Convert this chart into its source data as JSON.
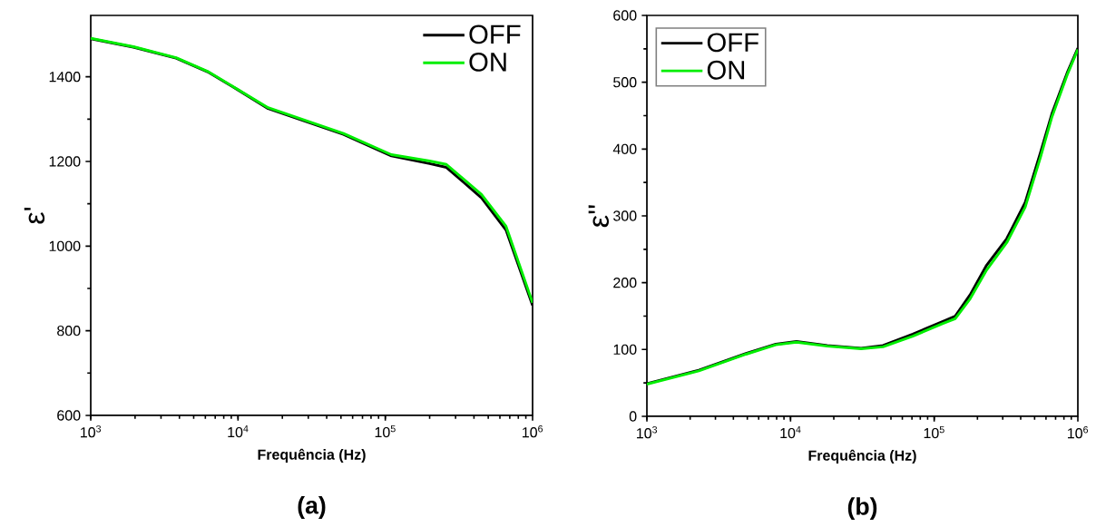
{
  "chart_data": [
    {
      "type": "line",
      "xlabel": "**Frequência (Hz)**",
      "ylabel": "ε'",
      "log": "x",
      "legend": "top right",
      "xlim": [
        1000,
        1000000
      ],
      "ylim": [
        600,
        1545
      ],
      "xticks": [
        {
          "value": 1000,
          "label": "10$^{3}$"
        },
        {
          "value": 10000,
          "label": "10$^{4}$"
        },
        {
          "value": 100000,
          "label": "10$^{5}$"
        },
        {
          "value": 1000000,
          "label": "10$^{6}$"
        }
      ],
      "yticks": [
        600,
        800,
        1000,
        1200,
        1400
      ],
      "x": [
        1000,
        1950,
        3800,
        6200,
        10000,
        16000,
        26000,
        52000,
        110000,
        200000,
        260000,
        450000,
        660000,
        1000000
      ],
      "series": [
        {
          "name": "OFF",
          "color": "#000000",
          "values": [
            1490,
            1470,
            1444,
            1412,
            1369,
            1325,
            1300,
            1264,
            1213,
            1195,
            1186,
            1114,
            1038,
            860
          ]
        },
        {
          "name": "ON",
          "color": "#00ee00",
          "values": [
            1491,
            1471,
            1445,
            1413,
            1370,
            1327,
            1302,
            1266,
            1216,
            1201,
            1193,
            1122,
            1047,
            866
          ]
        }
      ],
      "annotations": [
        "**(a)**"
      ]
    },
    {
      "type": "line",
      "xlabel": "**Frequência (Hz)**",
      "ylabel": "ε''",
      "log": "x",
      "legend": "top left",
      "xlim": [
        1000,
        1000000
      ],
      "ylim": [
        0,
        600
      ],
      "xticks": [
        {
          "value": 1000,
          "label": "10$^{3}$"
        },
        {
          "value": 10000,
          "label": "10$^{4}$"
        },
        {
          "value": 100000,
          "label": "10$^{5}$"
        },
        {
          "value": 1000000,
          "label": "10$^{6}$"
        }
      ],
      "yticks": [
        0,
        100,
        200,
        300,
        400,
        500,
        600
      ],
      "x": [
        1000,
        2300,
        4900,
        7900,
        11000,
        18000,
        31000,
        44000,
        71000,
        115000,
        140000,
        178000,
        230000,
        320000,
        430000,
        550000,
        660000,
        850000,
        1000000
      ],
      "series": [
        {
          "name": "OFF",
          "color": "#000000",
          "values": [
            49,
            69,
            94,
            108,
            112,
            106,
            102,
            106,
            123,
            142,
            150,
            182,
            225,
            266,
            320,
            395,
            453,
            516,
            551
          ]
        },
        {
          "name": "ON",
          "color": "#00ee00",
          "values": [
            48,
            68,
            93,
            107,
            111,
            105,
            101,
            104,
            120,
            139,
            146,
            176,
            218,
            260,
            313,
            388,
            448,
            513,
            549
          ]
        }
      ],
      "annotations": [
        "**(b)**"
      ]
    }
  ]
}
